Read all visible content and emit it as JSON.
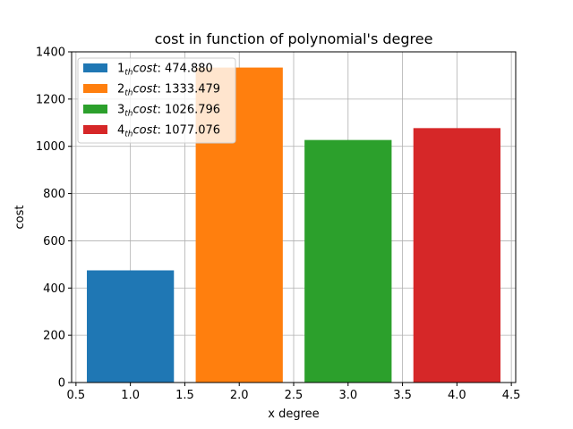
{
  "chart_data": {
    "type": "bar",
    "title": "cost in function of polynomial's degree",
    "xlabel": "x degree",
    "ylabel": "cost",
    "x": [
      1.0,
      2.0,
      3.0,
      4.0
    ],
    "values": [
      474.88,
      1333.479,
      1026.796,
      1077.076
    ],
    "bar_width": 0.8,
    "colors": [
      "#1f77b4",
      "#ff7f0e",
      "#2ca02c",
      "#d62728"
    ],
    "xlim": [
      0.46,
      4.54
    ],
    "ylim": [
      0,
      1400
    ],
    "xticks": [
      0.5,
      1.0,
      1.5,
      2.0,
      2.5,
      3.0,
      3.5,
      4.0,
      4.5
    ],
    "xtick_labels": [
      "0.5",
      "1.0",
      "1.5",
      "2.0",
      "2.5",
      "3.0",
      "3.5",
      "4.0",
      "4.5"
    ],
    "yticks": [
      0,
      200,
      400,
      600,
      800,
      1000,
      1200,
      1400
    ],
    "ytick_labels": [
      "0",
      "200",
      "400",
      "600",
      "800",
      "1000",
      "1200",
      "1400"
    ],
    "grid": true,
    "legend_position": "top-left",
    "legend": [
      {
        "num": "1",
        "sub": "th",
        "word": "cost",
        "value": ": 474.880"
      },
      {
        "num": "2",
        "sub": "th",
        "word": "cost",
        "value": ": 1333.479"
      },
      {
        "num": "3",
        "sub": "th",
        "word": "cost",
        "value": ": 1026.796"
      },
      {
        "num": "4",
        "sub": "th",
        "word": "cost",
        "value": ": 1077.076"
      }
    ]
  }
}
